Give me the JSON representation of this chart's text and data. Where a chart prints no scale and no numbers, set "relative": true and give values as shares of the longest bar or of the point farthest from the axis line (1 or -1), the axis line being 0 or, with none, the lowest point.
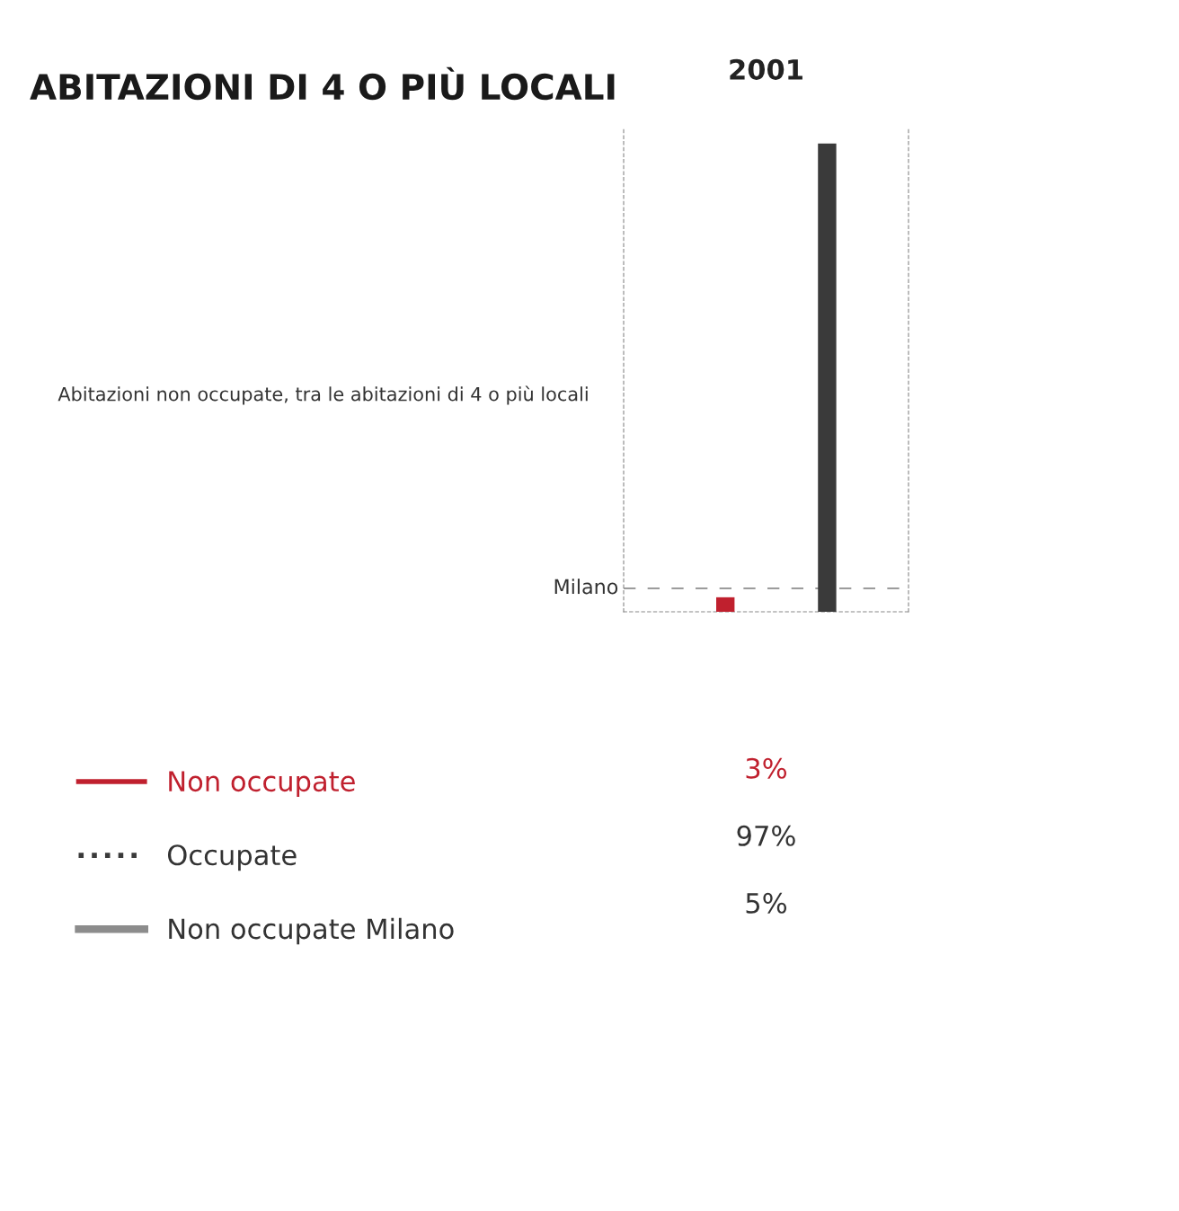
{
  "chart_data": {
    "type": "bar",
    "title": "ABITAZIONI DI 4 O PIÙ LOCALI",
    "subtitle": "Abitazioni non occupate, tra le abitazioni di 4 o più locali",
    "xlabel": "2001",
    "categories": [
      null,
      null
    ],
    "values": [
      0.031,
      1
    ],
    "colors": [
      "#c0202e",
      "#3a3a3a"
    ],
    "relative": true,
    "ref_lines": [
      {
        "axis": "y",
        "value": 0.05,
        "label": "Milano",
        "color": "#8c8c8c",
        "line_style": "dashed"
      }
    ],
    "annotations": [
      "Non occupate",
      "Occupate",
      "Non occupate Milano",
      "3%",
      "97%",
      "5%"
    ],
    "legend": "left",
    "grid": false
  }
}
